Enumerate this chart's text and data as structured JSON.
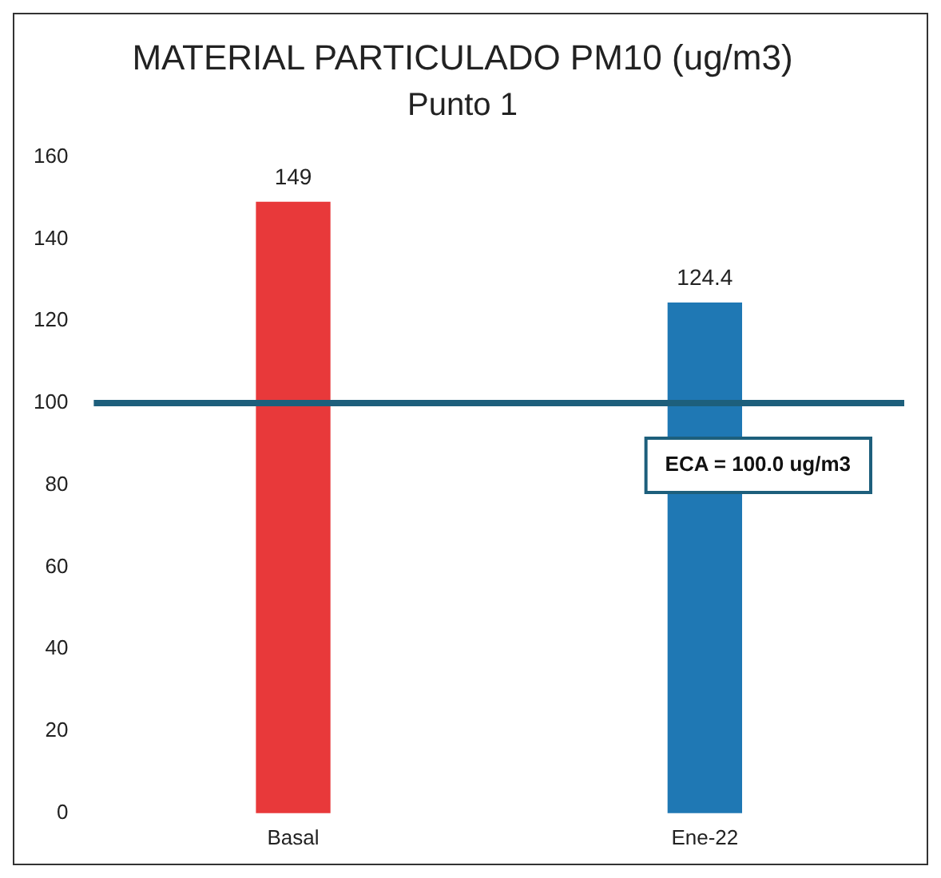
{
  "chart_data": {
    "type": "bar",
    "title": "MATERIAL PARTICULADO PM10 (ug/m3)",
    "subtitle": "Punto 1",
    "categories": [
      "Basal",
      "Ene-22"
    ],
    "values": [
      149,
      124.4
    ],
    "colors": [
      "#e8393a",
      "#1f78b4"
    ],
    "ylim": [
      0,
      160
    ],
    "yticks": [
      0,
      20,
      40,
      60,
      80,
      100,
      120,
      140,
      160
    ],
    "grid": false,
    "data_labels": true,
    "legend": false,
    "ref_lines": [
      {
        "axis": "y",
        "value": 100,
        "label": "ECA = 100.0 ug/m3",
        "color": "#1d5f7c"
      }
    ]
  }
}
